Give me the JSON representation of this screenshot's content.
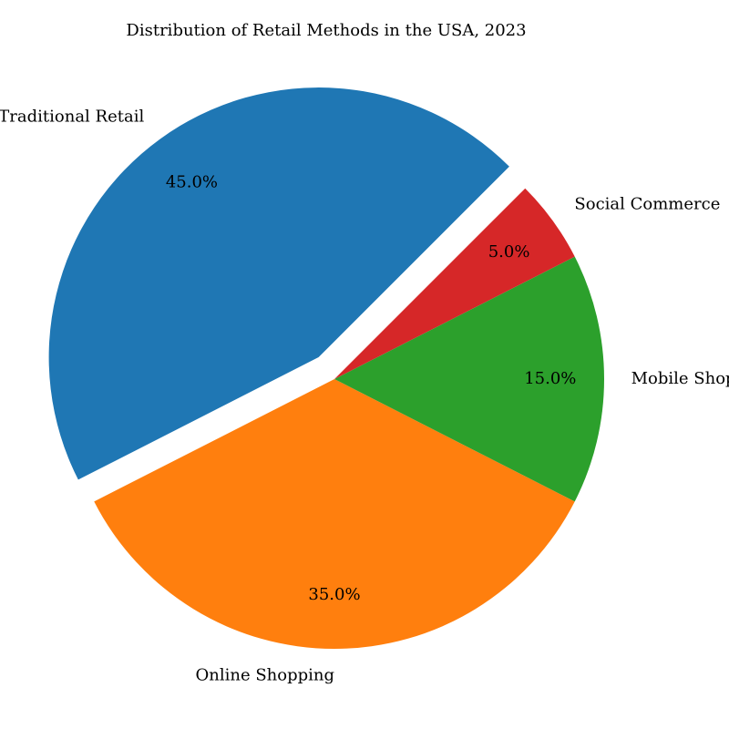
{
  "chart_data": {
    "type": "pie",
    "title": "Distribution of Retail Methods in the USA, 2023",
    "slices": [
      {
        "label": "Traditional Retail",
        "value": 45.0,
        "pct_label": "45.0%",
        "color": "#1f77b4",
        "exploded": true
      },
      {
        "label": "Online Shopping",
        "value": 35.0,
        "pct_label": "35.0%",
        "color": "#ff7f0e",
        "exploded": false
      },
      {
        "label": "Mobile Shopping",
        "value": 15.0,
        "pct_label": "15.0%",
        "color": "#2ca02c",
        "exploded": false
      },
      {
        "label": "Social Commerce",
        "value": 5.0,
        "pct_label": "5.0%",
        "color": "#d62728",
        "exploded": false
      }
    ],
    "start_angle_deg": 45,
    "direction": "counterclockwise",
    "legend": "none"
  }
}
